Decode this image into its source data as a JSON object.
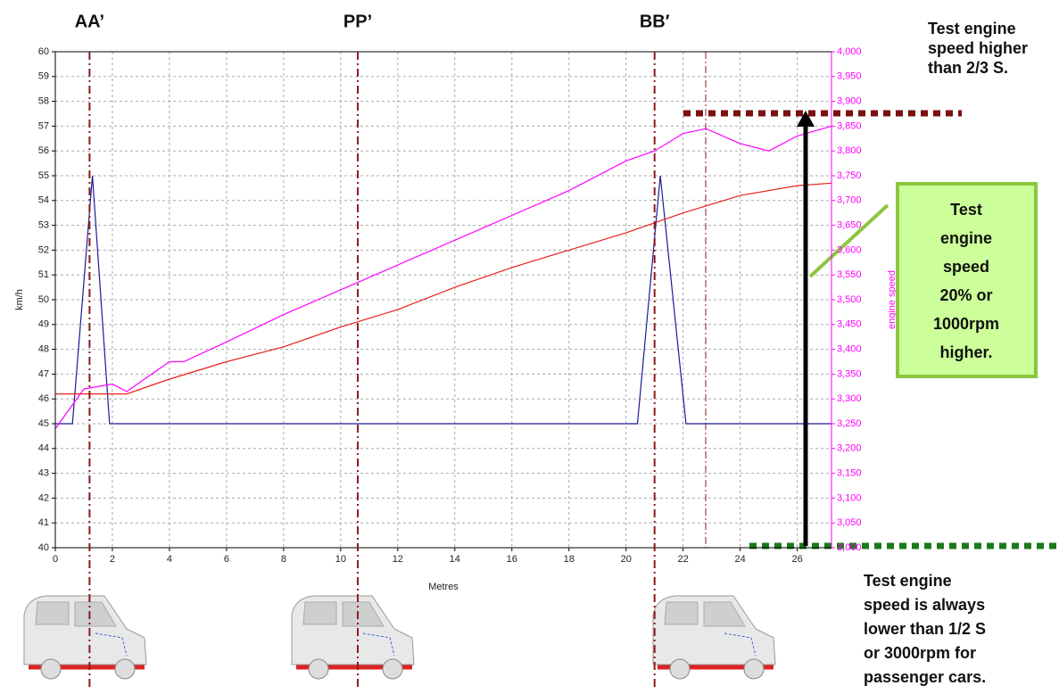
{
  "chart_data": {
    "type": "line",
    "x_label": "Metres",
    "y_label": "km/h",
    "y2_label": "engine speed",
    "xlim": [
      0,
      27.2
    ],
    "ylim": [
      40,
      60
    ],
    "y2lim": [
      3000,
      4000
    ],
    "xticks": [
      0,
      2,
      4,
      6,
      8,
      10,
      12,
      14,
      16,
      18,
      20,
      22,
      24,
      26
    ],
    "yticks": [
      40,
      41,
      42,
      43,
      44,
      45,
      46,
      47,
      48,
      49,
      50,
      51,
      52,
      53,
      54,
      55,
      56,
      57,
      58,
      59,
      60
    ],
    "y2ticks": [
      {
        "value": 3000,
        "label": "3,000"
      },
      {
        "value": 3050,
        "label": "3,050"
      },
      {
        "value": 3100,
        "label": "3,100"
      },
      {
        "value": 3150,
        "label": "3,150"
      },
      {
        "value": 3200,
        "label": "3,200"
      },
      {
        "value": 3250,
        "label": "3,250"
      },
      {
        "value": 3300,
        "label": "3,300"
      },
      {
        "value": 3350,
        "label": "3,350"
      },
      {
        "value": 3400,
        "label": "3,400"
      },
      {
        "value": 3450,
        "label": "3,450"
      },
      {
        "value": 3500,
        "label": "3,500"
      },
      {
        "value": 3550,
        "label": "3,550"
      },
      {
        "value": 3600,
        "label": "3,600"
      },
      {
        "value": 3650,
        "label": "3,650"
      },
      {
        "value": 3700,
        "label": "3,700"
      },
      {
        "value": 3750,
        "label": "3,750"
      },
      {
        "value": 3800,
        "label": "3,800"
      },
      {
        "value": 3850,
        "label": "3,850"
      },
      {
        "value": 3900,
        "label": "3,900"
      },
      {
        "value": 3950,
        "label": "3,950"
      },
      {
        "value": 4000,
        "label": "4,000"
      }
    ],
    "grid": true,
    "series": [
      {
        "color": "#1a1a99",
        "x": [
          0,
          0.6,
          1.3,
          1.9,
          20.4,
          21.2,
          22.1,
          27.2
        ],
        "values": [
          45,
          45,
          55,
          45,
          45,
          55,
          45,
          45
        ]
      },
      {
        "color": "#e8201a",
        "x": [
          0,
          2.5,
          4,
          6,
          8,
          10,
          12,
          14,
          16,
          18,
          20,
          22,
          24,
          26,
          27.2
        ],
        "values": [
          46.2,
          46.2,
          46.8,
          47.5,
          48.1,
          48.9,
          49.6,
          50.5,
          51.3,
          52.0,
          52.7,
          53.5,
          54.2,
          54.6,
          54.7
        ]
      },
      {
        "color": "#ff00ff",
        "axis": "y2",
        "x": [
          0,
          1,
          2,
          2.5,
          4,
          4.5,
          6,
          8,
          10,
          12,
          14,
          16,
          18,
          20,
          21,
          22,
          22.8,
          24,
          25,
          26,
          27.2
        ],
        "values": [
          3240,
          3320,
          3330,
          3315,
          3375,
          3375,
          3415,
          3470,
          3520,
          3570,
          3620,
          3670,
          3720,
          3780,
          3800,
          3835,
          3845,
          3815,
          3800,
          3830,
          3850
        ]
      }
    ],
    "markers": [
      {
        "label": "AA’",
        "x": 1.2
      },
      {
        "label": "PP’",
        "x": 10.6
      },
      {
        "label": "BB′",
        "x": 21.0
      }
    ],
    "note_top": [
      "Test engine",
      "speed higher",
      "than 2/3 S."
    ],
    "note_box": [
      "Test",
      "engine",
      "speed",
      "20% or",
      "1000rpm",
      "higher."
    ],
    "note_bottom": [
      "Test engine",
      "speed is always",
      "lower than 1/2 S",
      "or 3000rpm for",
      "passenger cars."
    ]
  }
}
